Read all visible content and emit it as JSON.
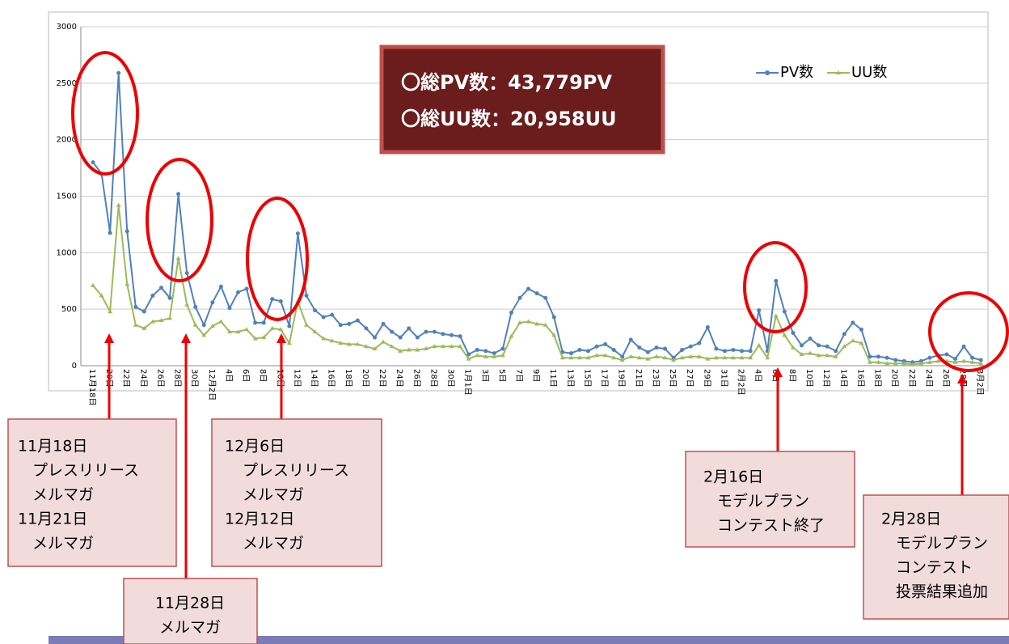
{
  "chart_data": {
    "type": "line",
    "categories": [
      "11月18日",
      null,
      "20日",
      null,
      "22日",
      null,
      "24日",
      null,
      "26日",
      null,
      "28日",
      null,
      "30日",
      null,
      "12月2日",
      null,
      "4日",
      null,
      "6日",
      null,
      "8日",
      null,
      "10日",
      null,
      "12日",
      null,
      "14日",
      null,
      "16日",
      null,
      "18日",
      null,
      "20日",
      null,
      "22日",
      null,
      "24日",
      null,
      "26日",
      null,
      "28日",
      null,
      "30日",
      null,
      "1月1日",
      null,
      "3日",
      null,
      "5日",
      null,
      "7日",
      null,
      "9日",
      null,
      "11日",
      null,
      "13日",
      null,
      "15日",
      null,
      "17日",
      null,
      "19日",
      null,
      "21日",
      null,
      "23日",
      null,
      "25日",
      null,
      "27日",
      null,
      "29日",
      null,
      "31日",
      null,
      "2月2日",
      null,
      "4日",
      null,
      "6日",
      null,
      "8日",
      null,
      "10日",
      null,
      "12日",
      null,
      "14日",
      null,
      "16日",
      null,
      "18日",
      null,
      "20日",
      null,
      "22日",
      null,
      "24日",
      null,
      "26日",
      null,
      "28日",
      null,
      "3月2日"
    ],
    "series": [
      {
        "name": "PV数",
        "color": "#4f81bd",
        "marker": "circle",
        "values": [
          1800,
          1700,
          1175,
          2590,
          1190,
          520,
          480,
          620,
          690,
          600,
          1520,
          820,
          520,
          360,
          560,
          700,
          510,
          650,
          680,
          380,
          380,
          590,
          570,
          350,
          1170,
          620,
          490,
          430,
          450,
          360,
          370,
          400,
          330,
          250,
          370,
          300,
          250,
          330,
          250,
          300,
          300,
          280,
          270,
          260,
          100,
          140,
          130,
          110,
          150,
          470,
          600,
          680,
          640,
          600,
          430,
          120,
          110,
          140,
          130,
          170,
          190,
          140,
          80,
          230,
          160,
          120,
          160,
          150,
          70,
          140,
          170,
          200,
          340,
          150,
          130,
          140,
          130,
          130,
          490,
          130,
          750,
          480,
          290,
          180,
          240,
          180,
          170,
          130,
          280,
          380,
          320,
          80,
          80,
          70,
          50,
          40,
          30,
          40,
          70,
          90,
          100,
          60,
          170,
          70,
          50
        ]
      },
      {
        "name": "UU数",
        "color": "#9bbb59",
        "marker": "triangle",
        "values": [
          710,
          620,
          480,
          1420,
          720,
          360,
          330,
          390,
          400,
          420,
          950,
          540,
          360,
          270,
          350,
          390,
          300,
          300,
          320,
          240,
          250,
          330,
          320,
          200,
          570,
          360,
          300,
          240,
          220,
          200,
          190,
          190,
          170,
          150,
          210,
          170,
          130,
          140,
          140,
          150,
          170,
          170,
          170,
          170,
          60,
          90,
          80,
          80,
          90,
          260,
          380,
          390,
          370,
          360,
          270,
          70,
          70,
          70,
          70,
          90,
          90,
          70,
          50,
          80,
          70,
          60,
          80,
          70,
          50,
          70,
          80,
          80,
          60,
          70,
          70,
          70,
          70,
          70,
          180,
          70,
          440,
          270,
          160,
          100,
          110,
          90,
          90,
          80,
          170,
          220,
          200,
          30,
          30,
          20,
          20,
          20,
          10,
          20,
          30,
          40,
          40,
          30,
          40,
          30,
          20
        ]
      }
    ],
    "ylim": [
      0,
      3000
    ],
    "yticks": [
      0,
      500,
      1000,
      1500,
      2000,
      2500,
      3000
    ],
    "grid": true,
    "legend": "top-right",
    "summary": [
      "〇総PV数：43,779PV",
      "〇総UU数：20,958UU"
    ],
    "annotations": [
      {
        "lines": [
          "11月18日",
          "プレスリリース",
          "メルマガ",
          "11月21日",
          "メルマガ"
        ]
      },
      {
        "lines": [
          "11月28日",
          "メルマガ"
        ]
      },
      {
        "lines": [
          "12月6日",
          "プレスリリース",
          "メルマガ",
          "12月12日",
          "メルマガ"
        ]
      },
      {
        "lines": [
          "2月16日",
          "モデルプラン",
          "コンテスト終了"
        ]
      },
      {
        "lines": [
          "2月28日",
          "モデルプラン",
          "コンテスト",
          "投票結果追加"
        ]
      }
    ]
  }
}
